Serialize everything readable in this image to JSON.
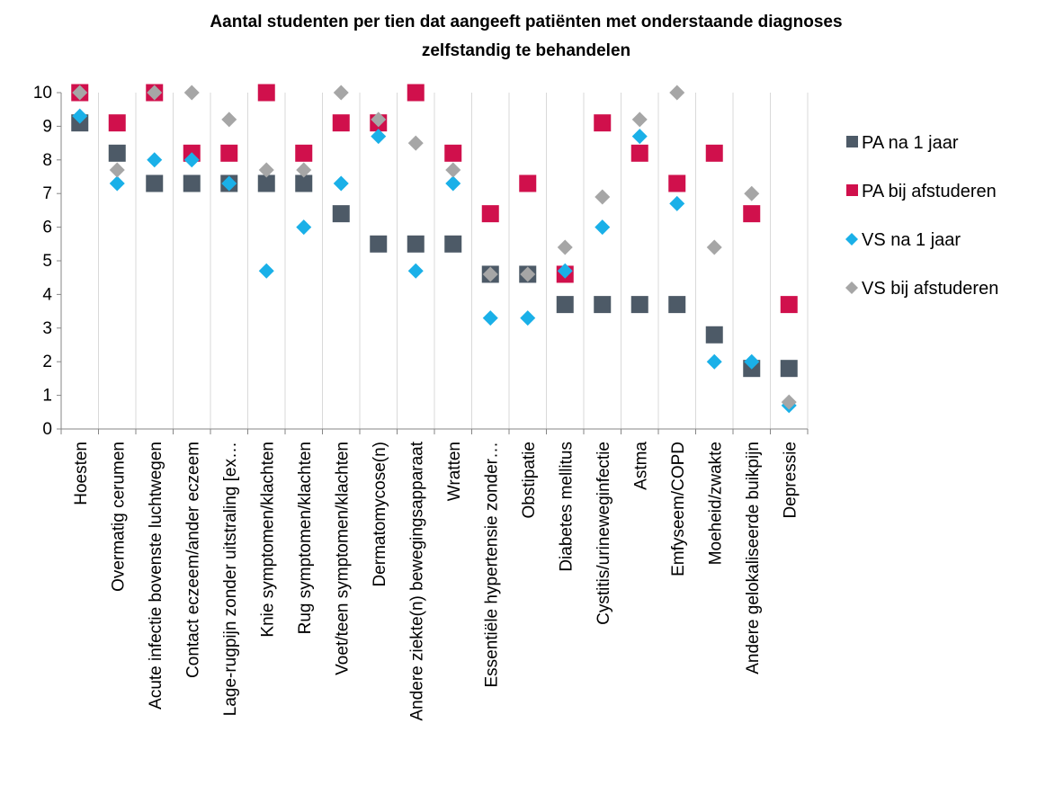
{
  "chart_data": {
    "type": "scatter",
    "title_lines": [
      "Aantal studenten per tien dat aangeeft patiënten met onderstaande diagnoses",
      "zelfstandig te behandelen"
    ],
    "xlabel": "",
    "ylabel": "",
    "ylim": [
      0,
      10
    ],
    "yticks": [
      0,
      1,
      2,
      3,
      4,
      5,
      6,
      7,
      8,
      9,
      10
    ],
    "grid": "vertical",
    "legend_position": "right",
    "categories": [
      "Hoesten",
      "Overmatig cerumen",
      "Acute infectie bovenste luchtwegen",
      "Contact eczeem/ander eczeem",
      "Lage-rugpijn zonder uitstraling [ex…",
      "Knie symptomen/klachten",
      "Rug symptomen/klachten",
      "Voet/teen symptomen/klachten",
      "Dermatomycose(n)",
      "Andere ziekte(n) bewegingsapparaat",
      "Wratten",
      "Essentiële hypertensie zonder…",
      "Obstipatie",
      "Diabetes mellitus",
      "Cystitis/urineweginfectie",
      "Astma",
      "Emfyseem/COPD",
      "Moeheid/zwakte",
      "Andere gelokaliseerde buikpijn",
      "Depressie"
    ],
    "series": [
      {
        "name": "PA na 1 jaar",
        "color": "#4d5a67",
        "marker": "square",
        "values": [
          9.1,
          8.2,
          7.3,
          7.3,
          7.3,
          7.3,
          7.3,
          6.4,
          5.5,
          5.5,
          5.5,
          4.6,
          4.6,
          3.7,
          3.7,
          3.7,
          3.7,
          2.8,
          1.8,
          1.8
        ]
      },
      {
        "name": "PA bij afstuderen",
        "color": "#d0104c",
        "marker": "square",
        "values": [
          10.0,
          9.1,
          10.0,
          8.2,
          8.2,
          10.0,
          8.2,
          9.1,
          9.1,
          10.0,
          8.2,
          6.4,
          7.3,
          4.6,
          9.1,
          8.2,
          7.3,
          8.2,
          6.4,
          3.7
        ]
      },
      {
        "name": "VS na 1 jaar",
        "color": "#1ab0e8",
        "marker": "diamond",
        "values": [
          9.3,
          7.3,
          8.0,
          8.0,
          7.3,
          4.7,
          6.0,
          7.3,
          8.7,
          4.7,
          7.3,
          3.3,
          3.3,
          4.7,
          6.0,
          8.7,
          6.7,
          2.0,
          2.0,
          0.7
        ]
      },
      {
        "name": "VS bij afstuderen",
        "color": "#a6a6a6",
        "marker": "diamond",
        "values": [
          10.0,
          7.7,
          10.0,
          10.0,
          9.2,
          7.7,
          7.7,
          10.0,
          9.2,
          8.5,
          7.7,
          4.6,
          4.6,
          5.4,
          6.9,
          9.2,
          10.0,
          5.4,
          7.0,
          0.8
        ]
      }
    ]
  }
}
